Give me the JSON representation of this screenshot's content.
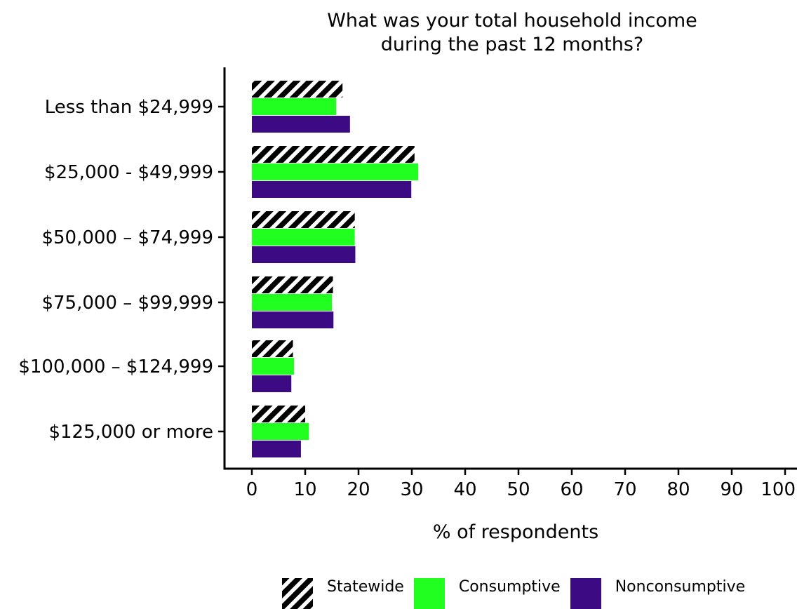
{
  "chart_data": {
    "type": "bar",
    "orientation": "horizontal",
    "title": "What was your total household income during the past 12 months?",
    "title_lines": [
      "What was your total household income",
      "during the past 12 months?"
    ],
    "xlabel": "% of respondents",
    "ylabel": "",
    "xlim": [
      0,
      100
    ],
    "x_ticks": [
      "0",
      "10",
      "20",
      "30",
      "40",
      "50",
      "60",
      "70",
      "80",
      "90",
      "100"
    ],
    "categories": [
      "Less than $24,999",
      "$25,000 - $49,999",
      "$50,000 – $74,999",
      "$75,000 – $99,999",
      "$100,000 – $124,999",
      "$125,000 or more"
    ],
    "series": [
      {
        "name": "Statewide",
        "color": "#000000",
        "pattern": "diagonal-hatch",
        "values": [
          17,
          30.5,
          19.3,
          15.2,
          7.7,
          10
        ]
      },
      {
        "name": "Consumptive",
        "color": "#21ff21",
        "values": [
          15.8,
          31.2,
          19.3,
          15,
          7.9,
          10.7
        ]
      },
      {
        "name": "Nonconsumptive",
        "color": "#3c0a82",
        "values": [
          18.4,
          29.9,
          19.4,
          15.3,
          7.4,
          9.2
        ]
      }
    ],
    "grid": false,
    "legend_position": "bottom"
  },
  "legend": {
    "items": [
      {
        "label": "Statewide",
        "color": "#000000"
      },
      {
        "label": "Consumptive",
        "color": "#21ff21"
      },
      {
        "label": "Nonconsumptive",
        "color": "#3c0a82"
      }
    ]
  }
}
